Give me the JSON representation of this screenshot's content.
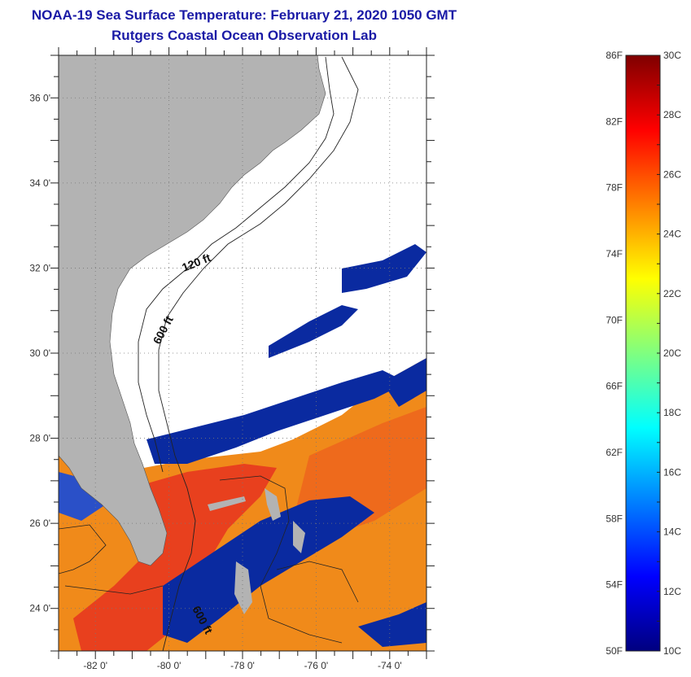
{
  "header": {
    "title": "NOAA-19 Sea Surface Temperature:  February 21, 2020 1050 GMT",
    "subtitle": "Rutgers Coastal Ocean Observation Lab"
  },
  "axes": {
    "x_range": [
      -83.0,
      -73.0
    ],
    "y_range": [
      23.0,
      37.0
    ],
    "x_ticks": [
      {
        "value": -82,
        "label": "-82 0'"
      },
      {
        "value": -80,
        "label": "-80 0'"
      },
      {
        "value": -78,
        "label": "-78 0'"
      },
      {
        "value": -76,
        "label": "-76 0'"
      },
      {
        "value": -74,
        "label": "-74 0'"
      }
    ],
    "y_ticks": [
      {
        "value": 24,
        "label": "24 0'"
      },
      {
        "value": 26,
        "label": "26 0'"
      },
      {
        "value": 28,
        "label": "28 0'"
      },
      {
        "value": 30,
        "label": "30 0'"
      },
      {
        "value": 32,
        "label": "32 0'"
      },
      {
        "value": 34,
        "label": "34 0'"
      },
      {
        "value": 36,
        "label": "36 0'"
      }
    ],
    "grid": "dotted"
  },
  "contour_labels": {
    "shallow": "120 ft",
    "deep": "600 ft",
    "deep_south": "600 ft"
  },
  "colors": {
    "land": "#b3b3b3",
    "cloud": "#ffffff",
    "cold_water": "#0a2aa0",
    "warm_water": "#f08a1a",
    "hot_water": "#e8401e",
    "title": "#1a1aa6"
  },
  "color_scale": {
    "min_c": 10,
    "max_c": 30,
    "min_f": 50,
    "max_f": 86,
    "fahrenheit_labels": [
      "86F",
      "82F",
      "78F",
      "74F",
      "70F",
      "66F",
      "62F",
      "58F",
      "54F",
      "50F"
    ],
    "celsius_labels": [
      "30C",
      "28C",
      "26C",
      "24C",
      "22C",
      "20C",
      "18C",
      "16C",
      "14C",
      "12C",
      "10C"
    ]
  }
}
